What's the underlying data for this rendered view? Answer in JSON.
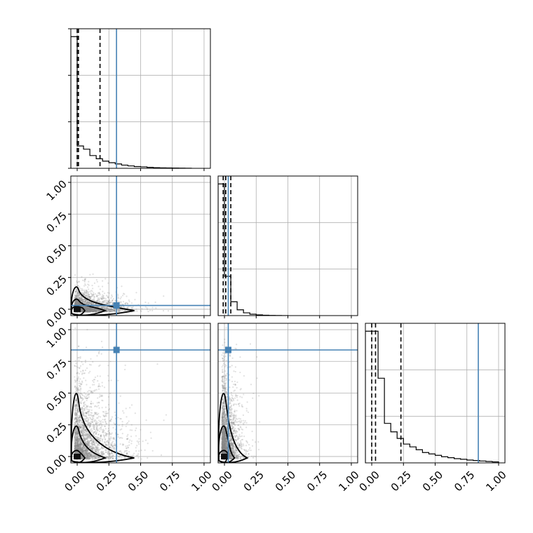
{
  "chart_data": {
    "type": "corner",
    "tick_labels": [
      "0.00",
      "0.25",
      "0.50",
      "0.75",
      "1.00"
    ],
    "tick_values": [
      0,
      0.25,
      0.5,
      0.75,
      1.0
    ],
    "axis_range": [
      -0.05,
      1.05
    ],
    "grid": true,
    "colors": {
      "truth": "#4682b4",
      "histogram": "#000000",
      "contour": "#000000",
      "scatter": "#888888",
      "grid": "#b0b0b0"
    },
    "truths": [
      0.31,
      0.03,
      0.84
    ],
    "quantiles": [
      [
        0.0,
        0.01,
        0.18
      ],
      [
        -0.01,
        0.01,
        0.05
      ],
      [
        0.0,
        0.03,
        0.23
      ]
    ],
    "histograms": [
      {
        "bin_edges": [
          -0.05,
          0.0,
          0.05,
          0.1,
          0.15,
          0.2,
          0.25,
          0.3,
          0.35,
          0.4,
          0.45,
          0.5,
          0.55,
          0.6,
          0.65,
          0.7,
          0.75,
          0.8,
          0.85,
          0.9
        ],
        "counts": [
          1650,
          280,
          240,
          160,
          120,
          90,
          70,
          55,
          40,
          30,
          22,
          18,
          12,
          8,
          6,
          5,
          3,
          2,
          1
        ]
      },
      {
        "bin_edges": [
          -0.05,
          0.0,
          0.05,
          0.1,
          0.15,
          0.2,
          0.25,
          0.3,
          0.35,
          0.4,
          0.45,
          0.5
        ],
        "counts": [
          5700,
          1700,
          600,
          250,
          120,
          60,
          30,
          15,
          8,
          4,
          2
        ]
      },
      {
        "bin_edges": [
          -0.05,
          0.0,
          0.05,
          0.1,
          0.15,
          0.2,
          0.25,
          0.3,
          0.35,
          0.4,
          0.45,
          0.5,
          0.55,
          0.6,
          0.65,
          0.7,
          0.75,
          0.8,
          0.85,
          0.9,
          0.95,
          1.0
        ],
        "counts": [
          1400,
          1400,
          900,
          420,
          330,
          260,
          200,
          170,
          140,
          110,
          95,
          80,
          65,
          55,
          45,
          38,
          30,
          25,
          20,
          15,
          10
        ]
      }
    ]
  }
}
